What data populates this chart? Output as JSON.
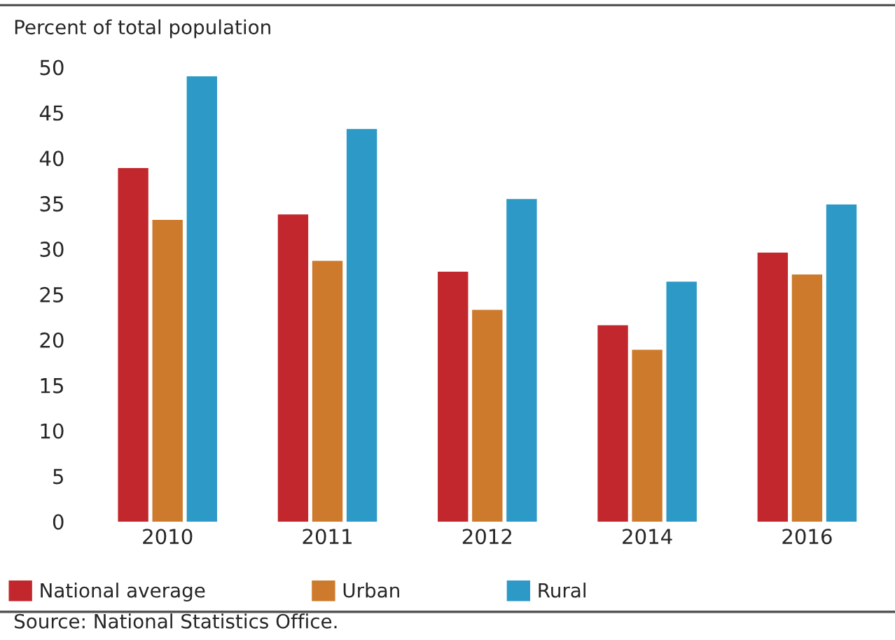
{
  "chart_data": {
    "type": "bar",
    "ylabel": "Percent of total population",
    "categories": [
      "2010",
      "2011",
      "2012",
      "2014",
      "2016"
    ],
    "series": [
      {
        "name": "National average",
        "color": "#c1272d",
        "values": [
          38.9,
          33.8,
          27.5,
          21.6,
          29.6
        ]
      },
      {
        "name": "Urban",
        "color": "#cd7a2c",
        "values": [
          33.2,
          28.7,
          23.3,
          18.9,
          27.2
        ]
      },
      {
        "name": "Rural",
        "color": "#2c99c6",
        "values": [
          49.0,
          43.2,
          35.5,
          26.4,
          34.9
        ]
      }
    ],
    "ylim": [
      0,
      50
    ],
    "yticks": [
      0,
      5,
      10,
      15,
      20,
      25,
      30,
      35,
      40,
      45,
      50
    ],
    "grid": false,
    "legend": "bottom",
    "annotations": [
      "Source: National Statistics Office."
    ]
  }
}
